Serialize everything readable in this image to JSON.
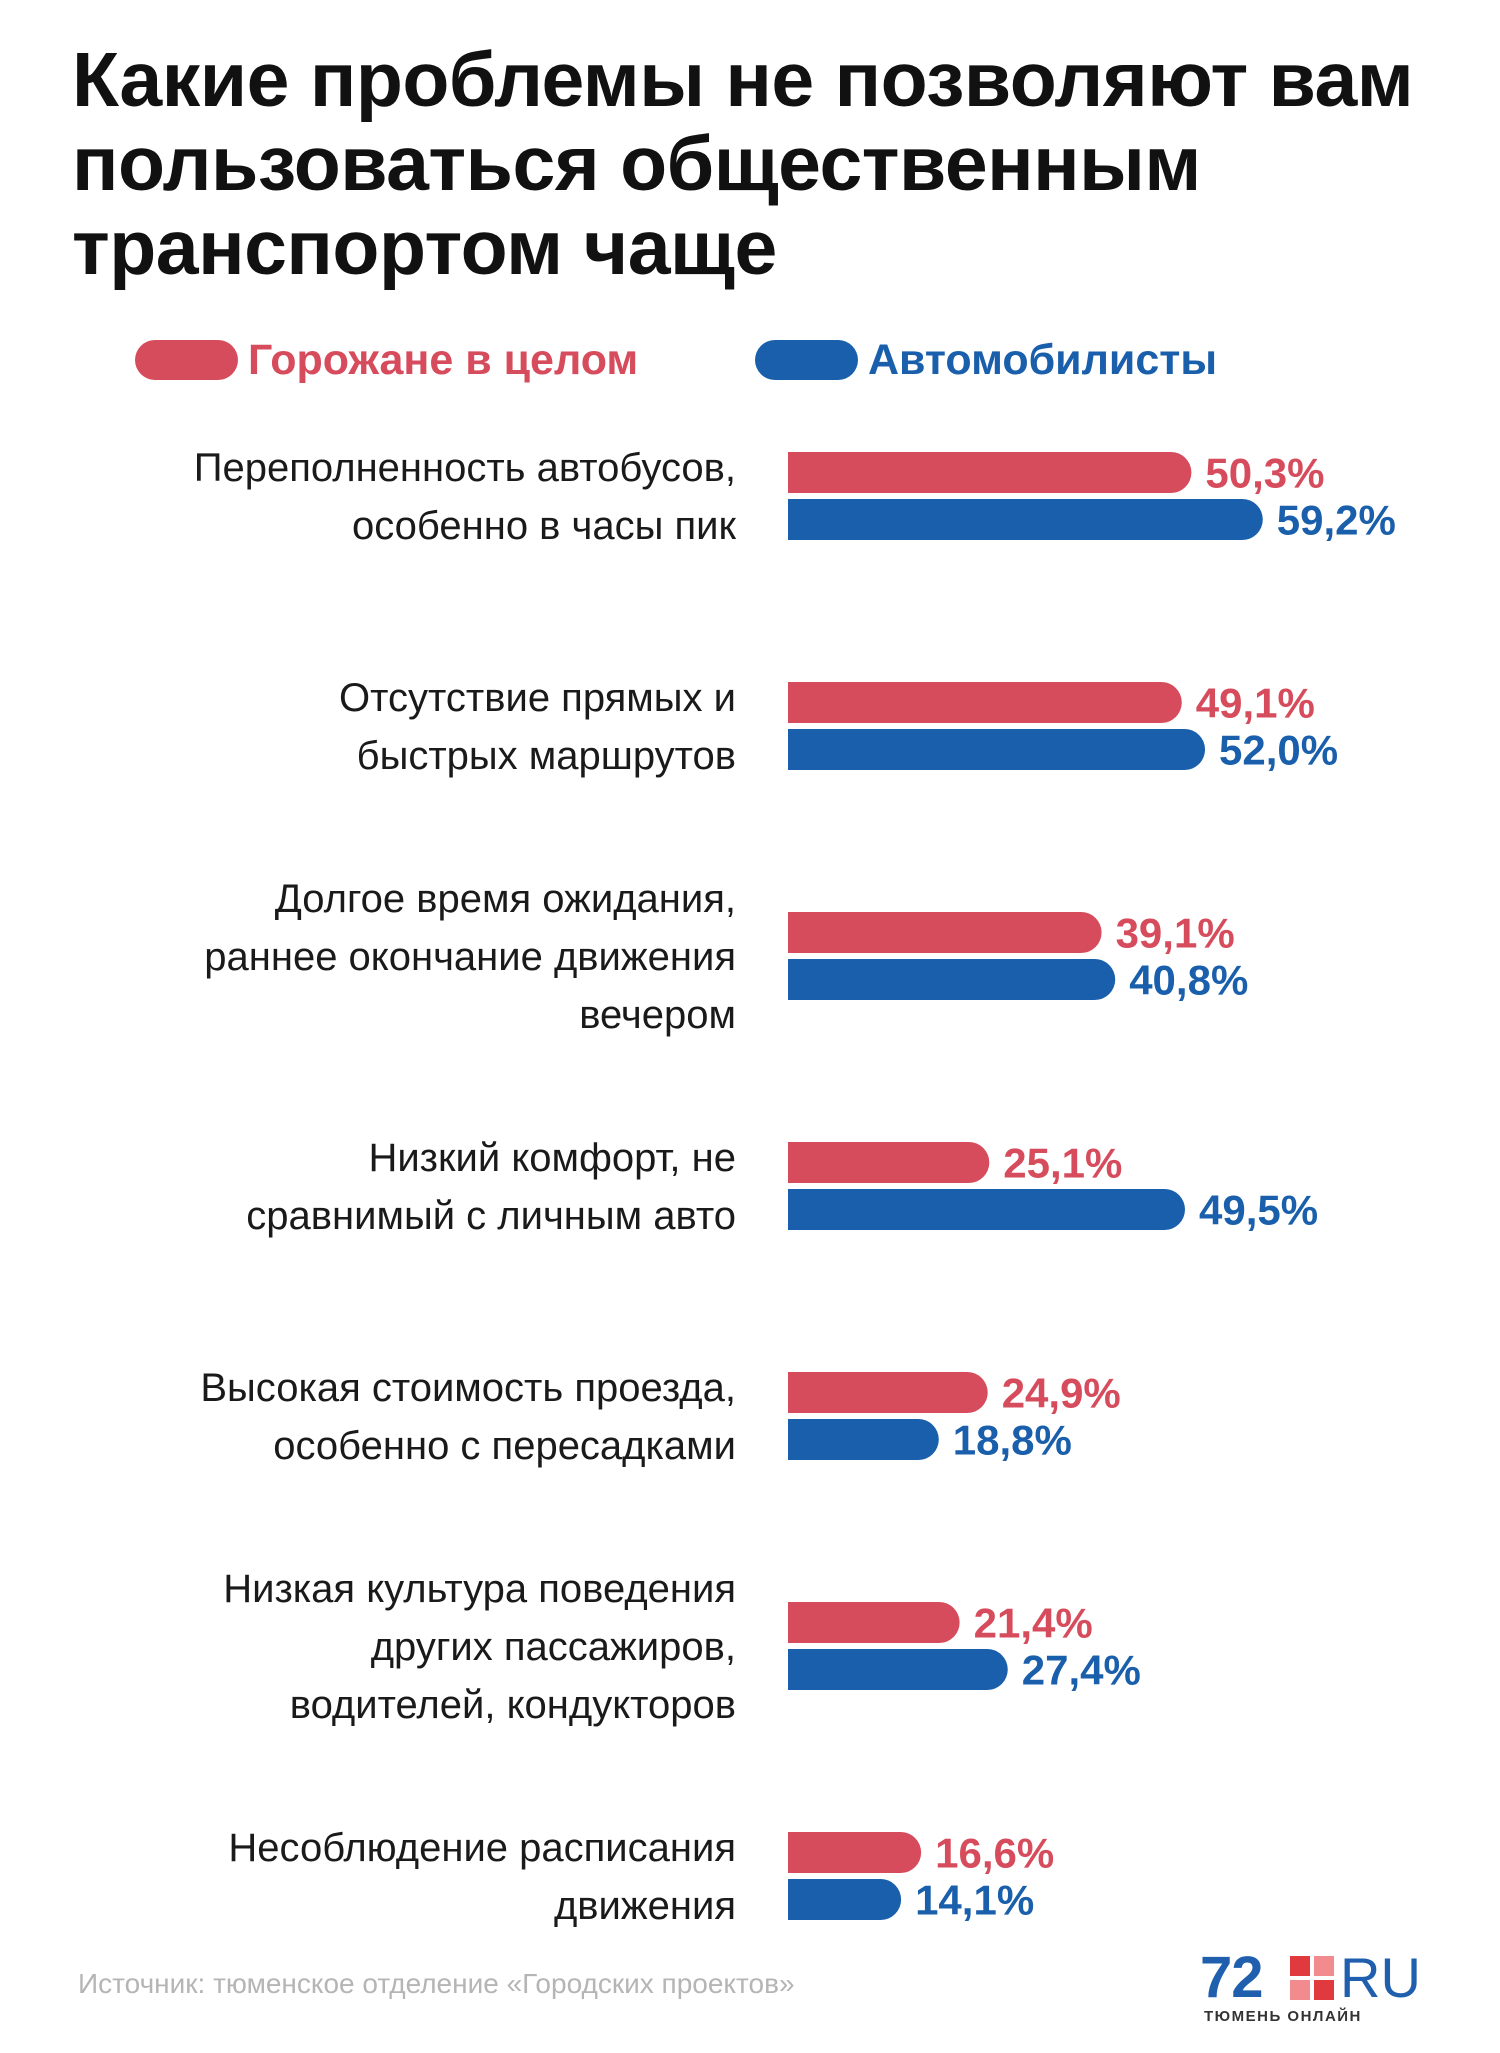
{
  "title": "Какие проблемы не позволяют вам пользоваться общественным транспортом чаще",
  "colors": {
    "citizens": "#d64c5c",
    "drivers": "#1a5fab"
  },
  "chart_data": {
    "type": "bar",
    "orientation": "horizontal",
    "title": "Какие проблемы не позволяют вам пользоваться общественным транспортом чаще",
    "categories": [
      [
        "Переполненность автобусов,",
        "особенно в часы пик"
      ],
      [
        "Отсутствие прямых и",
        "быстрых маршрутов"
      ],
      [
        "Долгое время ожидания,",
        "раннее окончание движения",
        "вечером"
      ],
      [
        "Низкий комфорт, не",
        "сравнимый с личным авто"
      ],
      [
        "Высокая стоимость проезда,",
        "особенно с пересадками"
      ],
      [
        "Низкая культура поведения",
        "других пассажиров,",
        "водителей, кондукторов"
      ],
      [
        "Несоблюдение расписания",
        "движения"
      ]
    ],
    "series": [
      {
        "name": "Горожане в целом",
        "color": "#d64c5c",
        "values": [
          50.3,
          49.1,
          39.1,
          25.1,
          24.9,
          21.4,
          16.6
        ],
        "labels": [
          "50,3%",
          "49,1%",
          "39,1%",
          "25,1%",
          "24,9%",
          "21,4%",
          "16,6%"
        ]
      },
      {
        "name": "Автомобилисты",
        "color": "#1a5fab",
        "values": [
          59.2,
          52.0,
          40.8,
          49.5,
          18.8,
          27.4,
          14.1
        ],
        "labels": [
          "59,2%",
          "52,0%",
          "40,8%",
          "49,5%",
          "18,8%",
          "27,4%",
          "14,1%"
        ]
      }
    ],
    "unit": "%",
    "xlim": [
      0,
      60
    ],
    "legend": "top",
    "grid": false
  },
  "legend": {
    "citizens": "Горожане в целом",
    "drivers": "Автомобилисты"
  },
  "footer": {
    "source": "Источник: тюменское отделение «Городских проектов»",
    "logo_number": "72",
    "logo_suffix": "RU",
    "logo_sub": "ТЮМЕНЬ ОНЛАЙН"
  }
}
